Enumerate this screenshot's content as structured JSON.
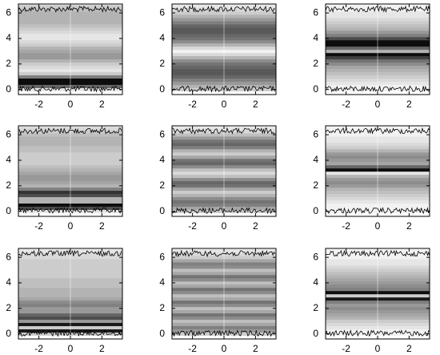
{
  "chart_data": [
    {
      "type": "density",
      "xlim": [
        -3.3,
        3.3
      ],
      "ylim": [
        -0.4,
        6.7
      ],
      "xticks": [
        -2,
        0,
        2
      ],
      "yticks": [
        0,
        2,
        4,
        6
      ],
      "y": [
        0,
        0.25,
        0.5,
        0.75,
        1,
        1.25,
        1.5,
        1.75,
        2,
        2.25,
        2.5,
        2.75,
        3,
        3.25,
        3.5,
        3.75,
        4,
        4.25,
        4.5,
        4.75,
        5,
        5.25,
        5.5,
        5.75,
        6,
        6.25,
        6.5
      ],
      "values": [
        0.1,
        0.6,
        0.95,
        0.95,
        0.5,
        0.2,
        0.1,
        0.15,
        0.2,
        0.3,
        0.4,
        0.4,
        0.35,
        0.3,
        0.2,
        0.15,
        0.1,
        0.1,
        0.15,
        0.2,
        0.25,
        0.3,
        0.3,
        0.3,
        0.3,
        0.25,
        0.2
      ]
    },
    {
      "type": "density",
      "xlim": [
        -3.3,
        3.3
      ],
      "ylim": [
        -0.4,
        6.7
      ],
      "xticks": [
        -2,
        0,
        2
      ],
      "yticks": [
        0,
        2,
        4,
        6
      ],
      "y": [
        0,
        0.25,
        0.5,
        0.75,
        1,
        1.25,
        1.5,
        1.75,
        2,
        2.25,
        2.5,
        2.75,
        3,
        3.25,
        3.5,
        3.75,
        4,
        4.25,
        4.5,
        4.75,
        5,
        5.25,
        5.5,
        5.75,
        6,
        6.25,
        6.5
      ],
      "values": [
        0.2,
        0.3,
        0.4,
        0.5,
        0.6,
        0.65,
        0.65,
        0.6,
        0.55,
        0.45,
        0.3,
        0.15,
        0.05,
        0.15,
        0.3,
        0.45,
        0.55,
        0.6,
        0.65,
        0.65,
        0.6,
        0.5,
        0.4,
        0.3,
        0.2,
        0.15,
        0.1
      ]
    },
    {
      "type": "density",
      "xlim": [
        -3.3,
        3.3
      ],
      "ylim": [
        -0.4,
        6.7
      ],
      "xticks": [
        -2,
        0,
        2
      ],
      "yticks": [
        0,
        2,
        4,
        6
      ],
      "y": [
        0,
        0.25,
        0.5,
        0.75,
        1,
        1.25,
        1.5,
        1.75,
        2,
        2.25,
        2.5,
        2.75,
        3,
        3.25,
        3.5,
        3.75,
        4,
        4.25,
        4.5,
        4.75,
        5,
        5.25,
        5.5,
        5.75,
        6,
        6.25,
        6.5
      ],
      "values": [
        0.05,
        0.05,
        0.1,
        0.15,
        0.2,
        0.25,
        0.3,
        0.35,
        0.45,
        0.55,
        0.75,
        0.95,
        0.3,
        0.6,
        0.95,
        0.95,
        0.7,
        0.5,
        0.4,
        0.3,
        0.25,
        0.2,
        0.15,
        0.1,
        0.1,
        0.05,
        0.05
      ]
    },
    {
      "type": "density",
      "xlim": [
        -3.3,
        3.3
      ],
      "ylim": [
        -0.4,
        6.7
      ],
      "xticks": [
        -2,
        0,
        2
      ],
      "yticks": [
        0,
        2,
        4,
        6
      ],
      "y": [
        0,
        0.25,
        0.5,
        0.75,
        1,
        1.25,
        1.5,
        1.75,
        2,
        2.25,
        2.5,
        2.75,
        3,
        3.25,
        3.5,
        3.75,
        4,
        4.25,
        4.5,
        4.75,
        5,
        5.25,
        5.5,
        5.75,
        6,
        6.25,
        6.5
      ],
      "values": [
        0.1,
        0.7,
        0.95,
        0.3,
        0.3,
        0.7,
        0.8,
        0.5,
        0.3,
        0.35,
        0.4,
        0.4,
        0.35,
        0.3,
        0.25,
        0.2,
        0.2,
        0.2,
        0.2,
        0.25,
        0.25,
        0.3,
        0.3,
        0.3,
        0.25,
        0.2,
        0.15
      ]
    },
    {
      "type": "density",
      "xlim": [
        -3.3,
        3.3
      ],
      "ylim": [
        -0.4,
        6.7
      ],
      "xticks": [
        -2,
        0,
        2
      ],
      "yticks": [
        0,
        2,
        4,
        6
      ],
      "y": [
        0,
        0.25,
        0.5,
        0.75,
        1,
        1.25,
        1.5,
        1.75,
        2,
        2.25,
        2.5,
        2.75,
        3,
        3.25,
        3.5,
        3.75,
        4,
        4.25,
        4.5,
        4.75,
        5,
        5.25,
        5.5,
        5.75,
        6,
        6.25,
        6.5
      ],
      "values": [
        0.2,
        0.35,
        0.5,
        0.55,
        0.45,
        0.3,
        0.2,
        0.35,
        0.55,
        0.6,
        0.45,
        0.25,
        0.15,
        0.25,
        0.45,
        0.6,
        0.55,
        0.35,
        0.2,
        0.3,
        0.5,
        0.6,
        0.55,
        0.4,
        0.25,
        0.15,
        0.1
      ]
    },
    {
      "type": "density",
      "xlim": [
        -3.3,
        3.3
      ],
      "ylim": [
        -0.4,
        6.7
      ],
      "xticks": [
        -2,
        0,
        2
      ],
      "yticks": [
        0,
        2,
        4,
        6
      ],
      "y": [
        0,
        0.25,
        0.5,
        0.75,
        1,
        1.25,
        1.5,
        1.75,
        2,
        2.25,
        2.5,
        2.75,
        3,
        3.25,
        3.5,
        3.75,
        4,
        4.25,
        4.5,
        4.75,
        5,
        5.25,
        5.5,
        5.75,
        6,
        6.25,
        6.5
      ],
      "values": [
        0.05,
        0.05,
        0.05,
        0.1,
        0.15,
        0.2,
        0.25,
        0.3,
        0.4,
        0.45,
        0.4,
        0.3,
        0.1,
        0.95,
        0.6,
        0.35,
        0.4,
        0.45,
        0.4,
        0.3,
        0.2,
        0.15,
        0.1,
        0.1,
        0.05,
        0.05,
        0.05
      ]
    },
    {
      "type": "density",
      "xlim": [
        -3.3,
        3.3
      ],
      "ylim": [
        -0.4,
        6.7
      ],
      "xticks": [
        -2,
        0,
        2
      ],
      "yticks": [
        0,
        2,
        4,
        6
      ],
      "y": [
        0,
        0.25,
        0.5,
        0.75,
        1,
        1.25,
        1.5,
        1.75,
        2,
        2.25,
        2.5,
        2.75,
        3,
        3.25,
        3.5,
        3.75,
        4,
        4.25,
        4.5,
        4.75,
        5,
        5.25,
        5.5,
        5.75,
        6,
        6.25,
        6.5
      ],
      "values": [
        0.2,
        0.9,
        0.2,
        0.9,
        0.4,
        0.7,
        0.6,
        0.4,
        0.4,
        0.5,
        0.45,
        0.35,
        0.3,
        0.3,
        0.3,
        0.25,
        0.25,
        0.25,
        0.2,
        0.2,
        0.2,
        0.2,
        0.2,
        0.2,
        0.15,
        0.15,
        0.1
      ]
    },
    {
      "type": "density",
      "xlim": [
        -3.3,
        3.3
      ],
      "ylim": [
        -0.4,
        6.7
      ],
      "xticks": [
        -2,
        0,
        2
      ],
      "yticks": [
        0,
        2,
        4,
        6
      ],
      "y": [
        0,
        0.25,
        0.5,
        0.75,
        1,
        1.25,
        1.5,
        1.75,
        2,
        2.25,
        2.5,
        2.75,
        3,
        3.25,
        3.5,
        3.75,
        4,
        4.25,
        4.5,
        4.75,
        5,
        5.25,
        5.5,
        5.75,
        6,
        6.25,
        6.5
      ],
      "values": [
        0.2,
        0.4,
        0.5,
        0.35,
        0.25,
        0.45,
        0.55,
        0.35,
        0.25,
        0.45,
        0.55,
        0.35,
        0.25,
        0.45,
        0.55,
        0.35,
        0.25,
        0.45,
        0.55,
        0.35,
        0.25,
        0.45,
        0.5,
        0.35,
        0.2,
        0.15,
        0.1
      ]
    },
    {
      "type": "density",
      "xlim": [
        -3.3,
        3.3
      ],
      "ylim": [
        -0.4,
        6.7
      ],
      "xticks": [
        -2,
        0,
        2
      ],
      "yticks": [
        0,
        2,
        4,
        6
      ],
      "y": [
        0,
        0.25,
        0.5,
        0.75,
        1,
        1.25,
        1.5,
        1.75,
        2,
        2.25,
        2.5,
        2.75,
        3,
        3.25,
        3.5,
        3.75,
        4,
        4.25,
        4.5,
        4.75,
        5,
        5.25,
        5.5,
        5.75,
        6,
        6.25,
        6.5
      ],
      "values": [
        0.05,
        0.05,
        0.1,
        0.15,
        0.2,
        0.3,
        0.35,
        0.4,
        0.45,
        0.4,
        0.5,
        0.9,
        0.2,
        0.95,
        0.5,
        0.45,
        0.4,
        0.35,
        0.3,
        0.25,
        0.2,
        0.15,
        0.1,
        0.1,
        0.05,
        0.05,
        0.05
      ]
    }
  ]
}
